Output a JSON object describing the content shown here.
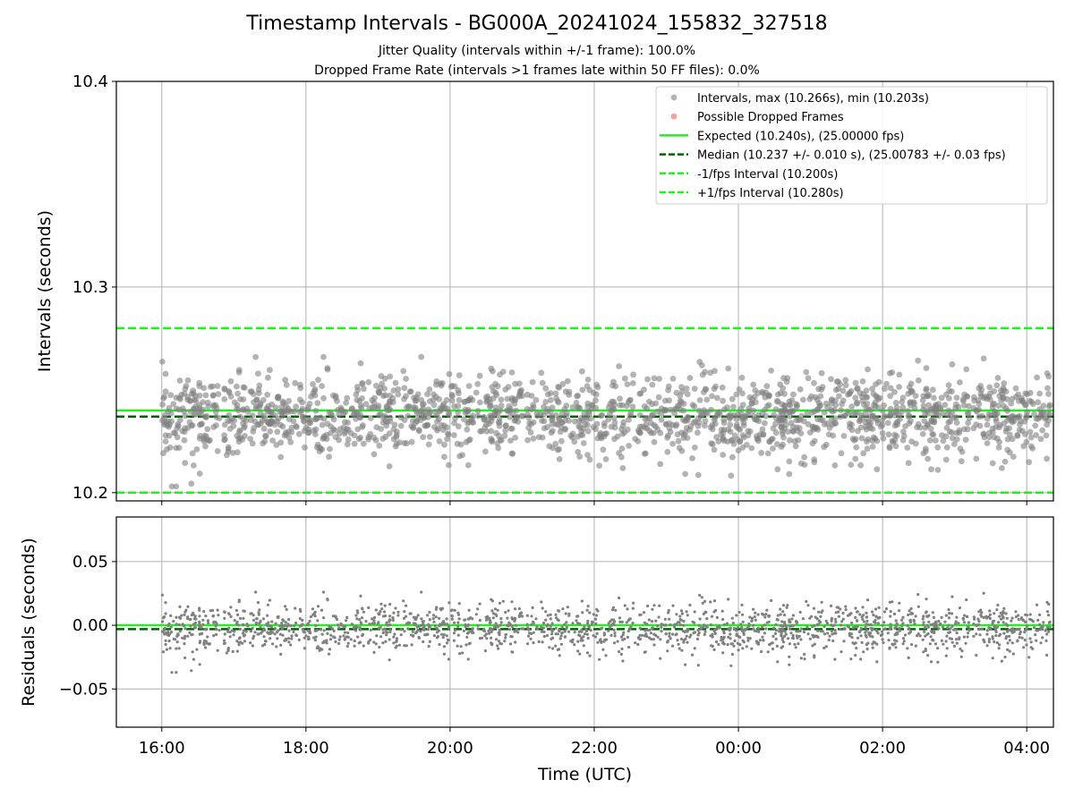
{
  "figure": {
    "title": "Timestamp Intervals - BG000A_20241024_155832_327518",
    "subtitle_1": "Jitter Quality (intervals within +/-1 frame): 100.0%",
    "subtitle_2": "Dropped Frame Rate (intervals >1 frames late within 50 FF files): 0.0%"
  },
  "colors": {
    "points": "#808080",
    "dropped": "#ff5a5a",
    "expected": "#22ee22",
    "median": "#006400",
    "bound": "#22ee22",
    "grid": "#b0b0b0"
  },
  "chart_data": [
    {
      "type": "scatter",
      "panel": "intervals",
      "xlabel": "",
      "ylabel": "Intervals (seconds)",
      "xlim_hours": [
        15.37,
        28.37
      ],
      "ylim": [
        10.196,
        10.4
      ],
      "y_ticks": [
        10.2,
        10.3,
        10.4
      ],
      "y_tick_labels": [
        "10.2",
        "10.3",
        "10.4"
      ],
      "grid": true,
      "legend_placement": "top-right",
      "series": [
        {
          "name": "Intervals, max (10.266s), min (10.203s)",
          "kind": "points",
          "x_range": [
            "16:00",
            "04:20"
          ],
          "count": 4330,
          "max": 10.266,
          "min": 10.203,
          "typical_range": [
            10.215,
            10.26
          ]
        },
        {
          "name": "Possible Dropped Frames",
          "kind": "points",
          "count": 0,
          "values": []
        },
        {
          "name": "Expected (10.240s), (25.00000 fps)",
          "kind": "hline",
          "y": 10.24
        },
        {
          "name": "Median (10.237 +/- 0.010 s), (25.00783 +/- 0.03 fps)",
          "kind": "hline-dashed",
          "y": 10.237
        },
        {
          "name": "-1/fps Interval (10.200s)",
          "kind": "hline-dashed",
          "y": 10.2
        },
        {
          "name": "+1/fps Interval (10.280s)",
          "kind": "hline-dashed",
          "y": 10.28
        }
      ]
    },
    {
      "type": "scatter",
      "panel": "residuals",
      "xlabel": "Time (UTC)",
      "ylabel": "Residuals (seconds)",
      "xlim_hours": [
        15.37,
        28.37
      ],
      "ylim": [
        -0.08,
        0.085
      ],
      "x_ticks_hours": [
        16,
        18,
        20,
        22,
        24,
        26,
        28
      ],
      "x_tick_labels": [
        "16:00",
        "18:00",
        "20:00",
        "22:00",
        "00:00",
        "02:00",
        "04:00"
      ],
      "y_ticks": [
        0.05,
        0.0,
        -0.05
      ],
      "y_tick_labels": [
        "0.05",
        "0.00",
        "−0.05"
      ],
      "grid": true,
      "series": [
        {
          "name": "",
          "kind": "points",
          "x_range": [
            "16:00",
            "04:20"
          ],
          "count": 4330,
          "max": 0.026,
          "min": -0.037,
          "typical_range": [
            -0.025,
            0.02
          ]
        },
        {
          "name": "",
          "kind": "hline",
          "y": 0.0
        },
        {
          "name": "",
          "kind": "hline-dashed",
          "y": -0.003
        }
      ]
    }
  ]
}
